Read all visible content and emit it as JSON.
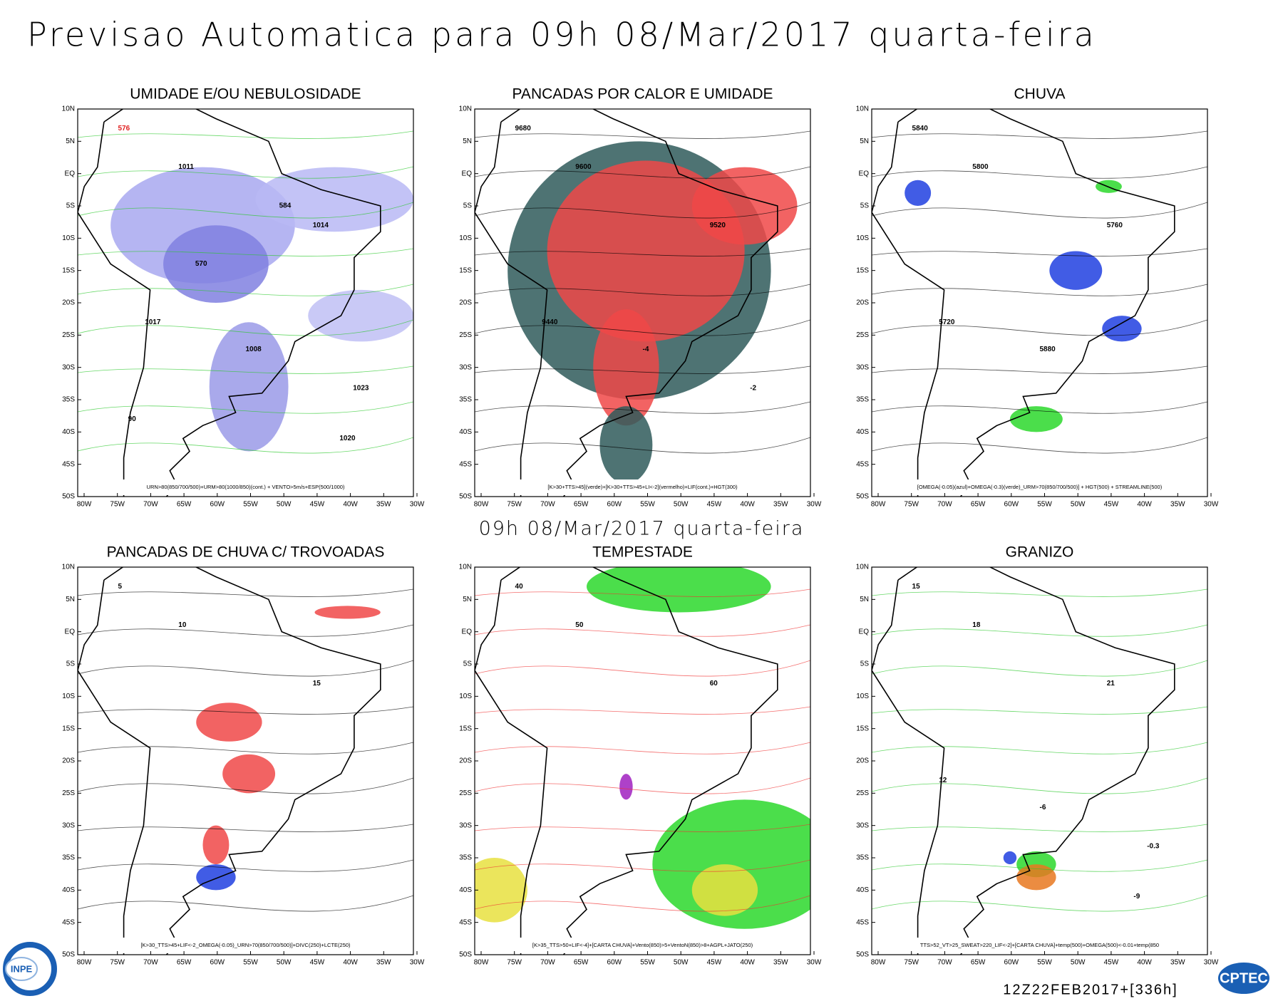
{
  "title": "Previsao Automatica  para 09h 08/Mar/2017 quarta-feira",
  "subtitle": "09h 08/Mar/2017 quarta-feira",
  "lat_labels": [
    "10N",
    "5N",
    "EQ",
    "5S",
    "10S",
    "15S",
    "20S",
    "25S",
    "30S",
    "35S",
    "40S",
    "45S",
    "50S"
  ],
  "lon_labels": [
    "80W",
    "75W",
    "70W",
    "65W",
    "60W",
    "55W",
    "50W",
    "45W",
    "40W",
    "35W",
    "30W"
  ],
  "panels": [
    {
      "title": "UMIDADE E/OU NEBULOSIDADE",
      "caption": "URN>80(850/700/500)+URM>80(1000/850)(cont.) + VENTO>5m/s+ESP(500/1000)",
      "contour_labels": [
        "576",
        "1011",
        "1014",
        "1017",
        "1008",
        "1023",
        "1020",
        "570",
        "584",
        "90"
      ]
    },
    {
      "title": "PANCADAS POR CALOR E UMIDADE",
      "caption": "[K>30+TTS>45](verde)+[K>30+TTS>45+LI<-2](vermelho)+LIF(cont.)+HGT(300)",
      "contour_labels": [
        "9680",
        "9600",
        "9520",
        "9440",
        "-4",
        "-2"
      ]
    },
    {
      "title": "CHUVA",
      "caption": "[OMEGA(-0.05)(azul)+OMEGA(-0.3)(verde)_URM>70(850/700/500)] + HGT(500) + STREAMLINE(500)",
      "contour_labels": [
        "5840",
        "5800",
        "5760",
        "5720",
        "5880"
      ]
    },
    {
      "title": "PANCADAS DE CHUVA C/ TROVOADAS",
      "caption": "[K>30_TTS>45+LIF<-2_OMEGA(-0.05)_URN>70(850/700/500)]+DIVC(250)+LCTE(250)",
      "contour_labels": [
        "5",
        "10",
        "15"
      ]
    },
    {
      "title": "TEMPESTADE",
      "caption": "[K>35_TTS>50+LIF<-4]+[CARTA CHUVA]+Vento(850)>5+VentoN(850)>8+AGPL+JATO(250)",
      "contour_labels": [
        "40",
        "50",
        "60"
      ]
    },
    {
      "title": "GRANIZO",
      "caption": "TTS>52_VT>25_SWEAT>220_LIF<-2]+[CARTA CHUVA]+temp(500)+OMEGA(500)<-0.01+temp(850",
      "contour_labels": [
        "15",
        "18",
        "21",
        "12",
        "-6",
        "-0.3",
        "-9"
      ]
    }
  ],
  "footer": "12Z22FEB2017+[336h]",
  "logos": [
    "INPE",
    "CPTEC"
  ]
}
